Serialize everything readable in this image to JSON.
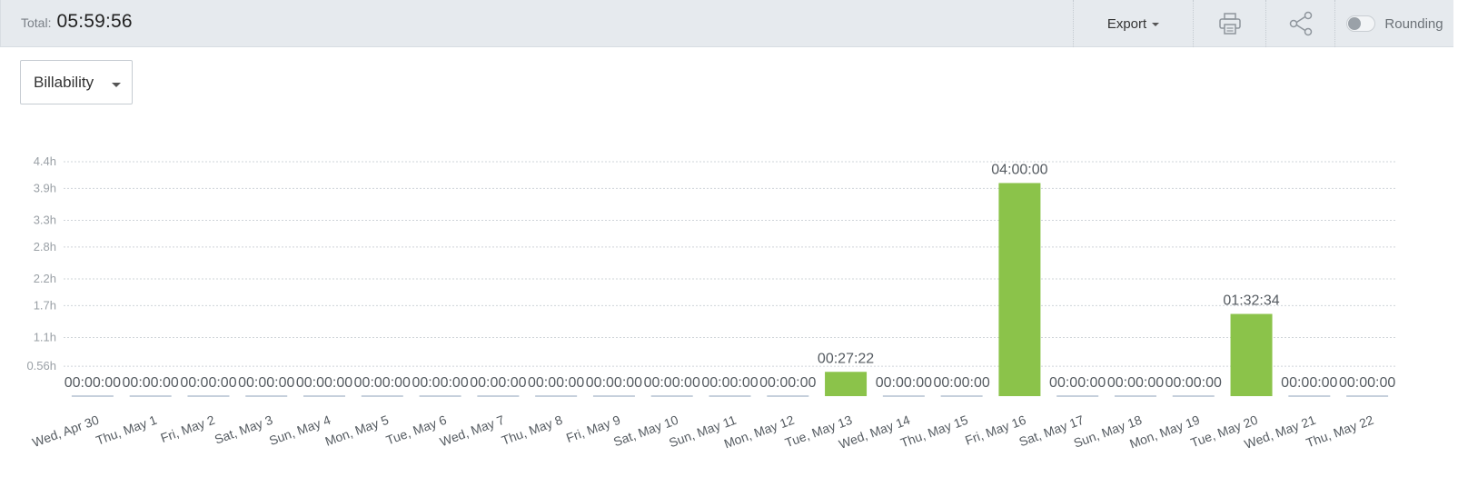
{
  "header": {
    "total_label": "Total:",
    "total_value": "05:59:56",
    "export_label": "Export",
    "rounding_label": "Rounding",
    "rounding_on": false
  },
  "filter": {
    "selected": "Billability"
  },
  "colors": {
    "bar": "#8bc34a",
    "zero_bar": "#c6d0dc",
    "header_bg": "#e6eaee",
    "grid": "#cfd4d9"
  },
  "chart_data": {
    "type": "bar",
    "categories": [
      "Wed, Apr 30",
      "Thu, May 1",
      "Fri, May 2",
      "Sat, May 3",
      "Sun, May 4",
      "Mon, May 5",
      "Tue, May 6",
      "Wed, May 7",
      "Thu, May 8",
      "Fri, May 9",
      "Sat, May 10",
      "Sun, May 11",
      "Mon, May 12",
      "Tue, May 13",
      "Wed, May 14",
      "Thu, May 15",
      "Fri, May 16",
      "Sat, May 17",
      "Sun, May 18",
      "Mon, May 19",
      "Tue, May 20",
      "Wed, May 21",
      "Thu, May 22"
    ],
    "values": [
      0,
      0,
      0,
      0,
      0,
      0,
      0,
      0,
      0,
      0,
      0,
      0,
      0,
      0.456,
      0,
      0,
      4.0,
      0,
      0,
      0,
      1.543,
      0,
      0
    ],
    "data_labels": [
      "00:00:00",
      "00:00:00",
      "00:00:00",
      "00:00:00",
      "00:00:00",
      "00:00:00",
      "00:00:00",
      "00:00:00",
      "00:00:00",
      "00:00:00",
      "00:00:00",
      "00:00:00",
      "00:00:00",
      "00:27:22",
      "00:00:00",
      "00:00:00",
      "04:00:00",
      "00:00:00",
      "00:00:00",
      "00:00:00",
      "01:32:34",
      "00:00:00",
      "00:00:00"
    ],
    "yticks": [
      0.56,
      1.1,
      1.7,
      2.2,
      2.8,
      3.3,
      3.9,
      4.4
    ],
    "ytick_labels": [
      "0.56h",
      "1.1h",
      "1.7h",
      "2.2h",
      "2.8h",
      "3.3h",
      "3.9h",
      "4.4h"
    ],
    "ylim": [
      0,
      4.4
    ],
    "grid": true,
    "title": "",
    "xlabel": "",
    "ylabel": ""
  }
}
